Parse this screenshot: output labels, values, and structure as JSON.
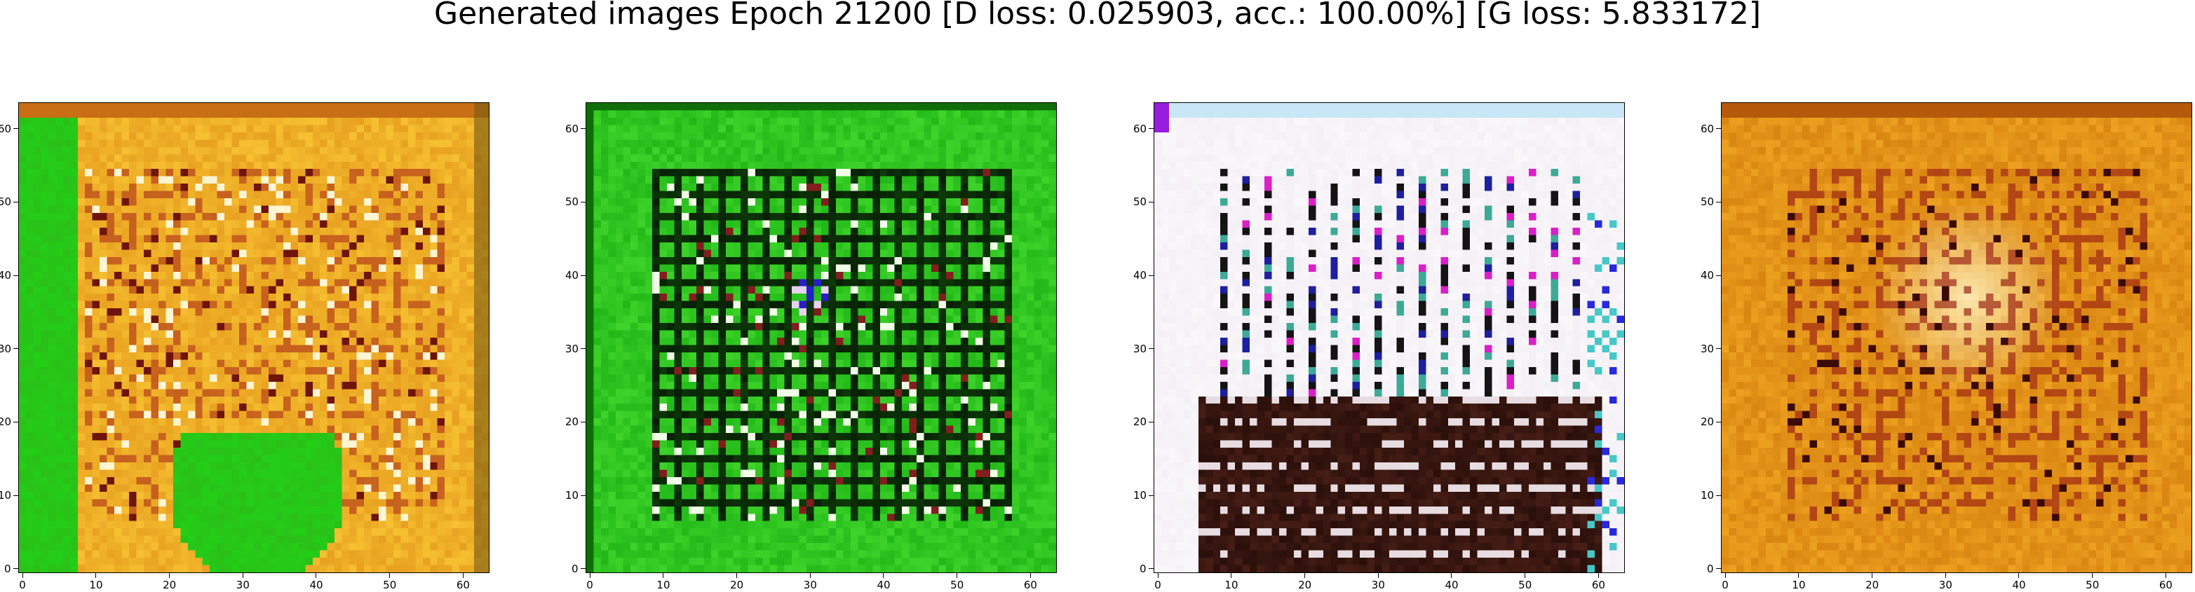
{
  "figure": {
    "title": "Generated images Epoch 21200 [D loss: 0.025903, acc.: 100.00%] [G loss: 5.833172]"
  },
  "chart_data": [
    {
      "type": "heatmap",
      "subject": "generated image 1",
      "palette": "green-left-band-and-bottom-blob-over-orange",
      "base_color": "#e8a020",
      "accent_color": "#2bbf18",
      "xlim": [
        -0.5,
        63.5
      ],
      "ylim": [
        63.5,
        -0.5
      ],
      "x_ticks": [
        0,
        10,
        20,
        30,
        40,
        50,
        60
      ],
      "y_ticks": [
        0,
        10,
        20,
        30,
        40,
        50,
        60
      ]
    },
    {
      "type": "heatmap",
      "subject": "generated image 2",
      "palette": "green-grid-pattern",
      "base_color": "#22b818",
      "accent_color": "#0d3a08",
      "xlim": [
        -0.5,
        63.5
      ],
      "ylim": [
        63.5,
        -0.5
      ],
      "x_ticks": [
        0,
        10,
        20,
        30,
        40,
        50,
        60
      ],
      "y_ticks": [
        0,
        10,
        20,
        30,
        40,
        50,
        60
      ]
    },
    {
      "type": "heatmap",
      "subject": "generated image 3",
      "palette": "white-with-dark-bottom-band",
      "base_color": "#f4f0f6",
      "accent_color": "#2a0f0a",
      "xlim": [
        -0.5,
        63.5
      ],
      "ylim": [
        63.5,
        -0.5
      ],
      "x_ticks": [
        0,
        10,
        20,
        30,
        40,
        50,
        60
      ],
      "y_ticks": [
        0,
        10,
        20,
        30,
        40,
        50,
        60
      ]
    },
    {
      "type": "heatmap",
      "subject": "generated image 4",
      "palette": "orange-with-light-center",
      "base_color": "#d98512",
      "accent_color": "#fff2c0",
      "xlim": [
        -0.5,
        63.5
      ],
      "ylim": [
        63.5,
        -0.5
      ],
      "x_ticks": [
        0,
        10,
        20,
        30,
        40,
        50,
        60
      ],
      "y_ticks": [
        0,
        10,
        20,
        30,
        40,
        50,
        60
      ]
    }
  ]
}
